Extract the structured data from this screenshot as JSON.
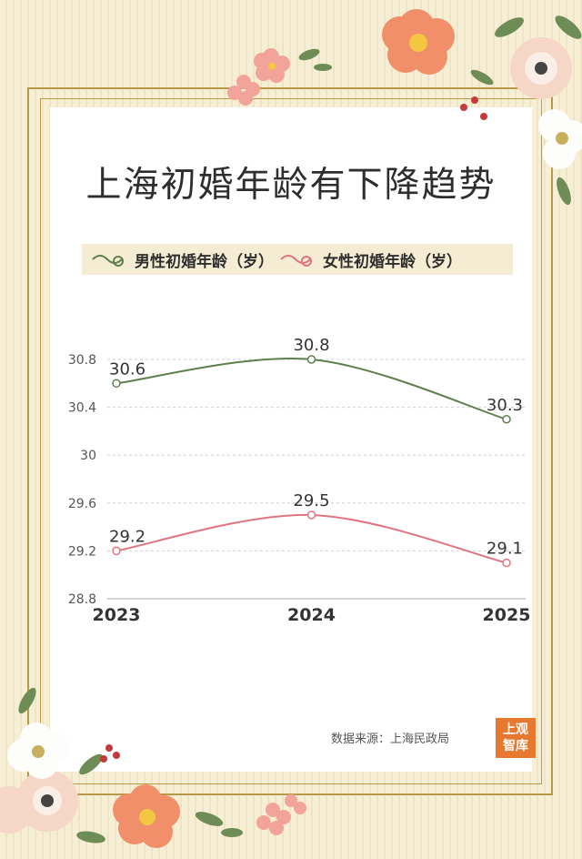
{
  "title": "上海初婚年龄有下降趋势",
  "legend": {
    "male": "男性初婚年龄（岁）",
    "female": "女性初婚年龄（岁）"
  },
  "source": "数据来源：上海民政局",
  "badge": {
    "line1": "上观",
    "line2": "智库"
  },
  "colors": {
    "male": "#5f7f4d",
    "female": "#e07480",
    "accent": "#e7782f",
    "frame": "#b89a48"
  },
  "chart_data": {
    "type": "line",
    "x": [
      "2023",
      "2024",
      "2025"
    ],
    "series": [
      {
        "name": "男性初婚年龄（岁）",
        "values": [
          30.6,
          30.8,
          30.3
        ]
      },
      {
        "name": "女性初婚年龄（岁）",
        "values": [
          29.2,
          29.5,
          29.1
        ]
      }
    ],
    "yticks": [
      "28.8",
      "29.2",
      "29.6",
      "30",
      "30.4",
      "30.8"
    ],
    "ylim": [
      28.8,
      30.8
    ],
    "grid": true
  }
}
